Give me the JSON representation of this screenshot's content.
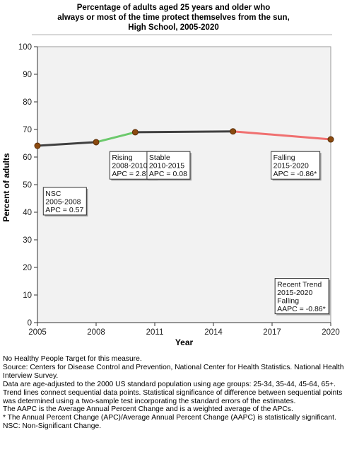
{
  "title_lines": [
    "Percentage of adults aged 25 years and older who",
    "always or most of the time protect themselves from the sun,",
    "High School,  2005-2020"
  ],
  "chart_data": {
    "type": "line",
    "xlabel": "Year",
    "ylabel": "Percent of adults",
    "xlim": [
      2005,
      2020
    ],
    "ylim": [
      0,
      100
    ],
    "x_ticks": [
      2005,
      2008,
      2011,
      2014,
      2017,
      2020
    ],
    "y_ticks": [
      0,
      10,
      20,
      30,
      40,
      50,
      60,
      70,
      80,
      90,
      100
    ],
    "grid": false,
    "points": [
      {
        "x": 2005,
        "y": 64.1
      },
      {
        "x": 2008,
        "y": 65.4
      },
      {
        "x": 2010,
        "y": 69.0
      },
      {
        "x": 2015,
        "y": 69.3
      },
      {
        "x": 2020,
        "y": 66.4
      }
    ],
    "segments": [
      {
        "from": 0,
        "to": 1,
        "trend": "NSC",
        "color": "#404040"
      },
      {
        "from": 1,
        "to": 2,
        "trend": "Rising",
        "color": "#6cc96c"
      },
      {
        "from": 2,
        "to": 3,
        "trend": "Stable",
        "color": "#404040"
      },
      {
        "from": 3,
        "to": 4,
        "trend": "Falling",
        "color": "#f07070"
      }
    ],
    "annotations": [
      {
        "lines": [
          "NSC",
          "2005-2008",
          "APC =  0.57"
        ],
        "anchor_x": 2005.3,
        "anchor_y": 49
      },
      {
        "lines": [
          "Rising",
          "2008-2010",
          "APC =  2.87*"
        ],
        "anchor_x": 2008.7,
        "anchor_y": 62
      },
      {
        "lines": [
          "Stable",
          "2010-2015",
          "APC =  0.08"
        ],
        "anchor_x": 2010.6,
        "anchor_y": 62
      },
      {
        "lines": [
          "Falling",
          "2015-2020",
          "APC = -0.86*"
        ],
        "anchor_x": 2016.95,
        "anchor_y": 62
      },
      {
        "lines": [
          "Recent Trend",
          "2015-2020",
          "Falling",
          "AAPC = -0.86*"
        ],
        "anchor_x": 2017.15,
        "anchor_y": 16
      }
    ],
    "marker_color": "#8b4a0f",
    "plot_background": "#f2f2f2"
  },
  "footnotes": [
    "No Healthy People Target for this measure.",
    "Source: Centers for Disease Control and Prevention, National Center for Health Statistics. National Health Interview Survey.",
    "Data are age-adjusted to the 2000 US standard population using age groups: 25-34, 35-44, 45-64, 65+.",
    "Trend lines connect sequential data points. Statistical significance of difference between sequential points was determined using a two-sample test incorporating the standard errors of the estimates.",
    "The AAPC is the Average Annual Percent Change and is a weighted average of the APCs.",
    "* The Annual Percent Change (APC)/Average Annual Percent Change (AAPC) is statistically significant.",
    "NSC: Non-Significant Change."
  ]
}
